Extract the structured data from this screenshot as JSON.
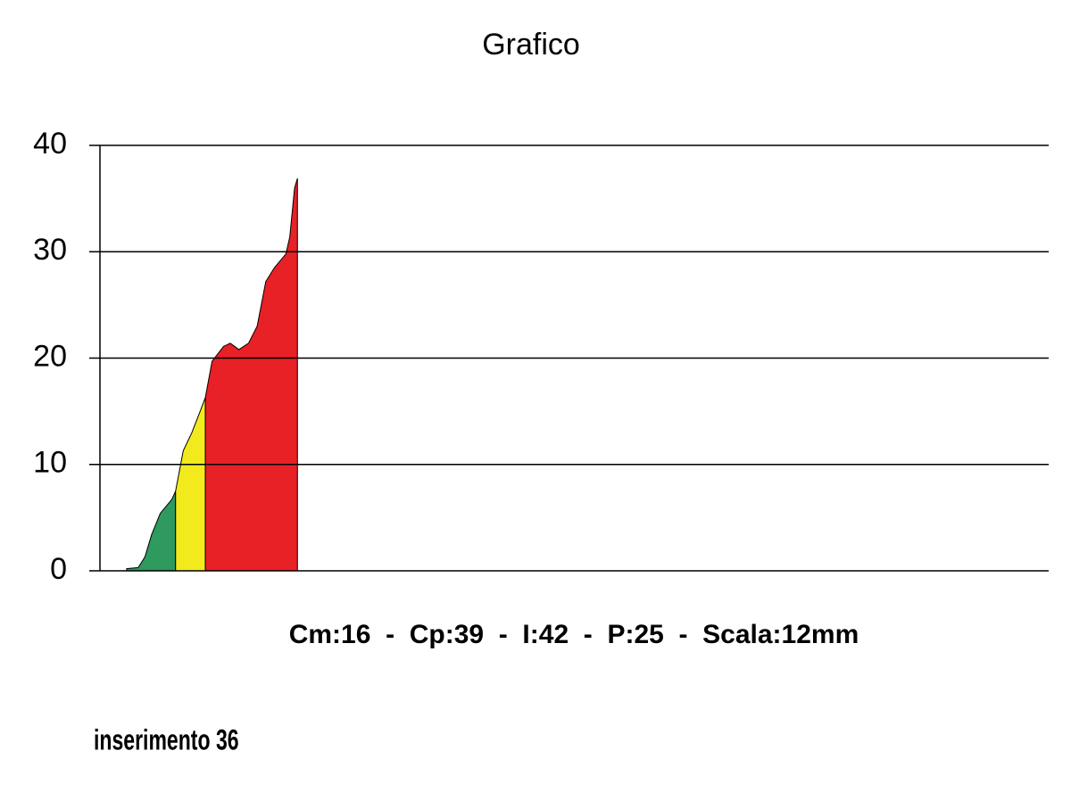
{
  "chart_data": {
    "type": "area",
    "title": "Grafico",
    "xlabel": "Cm:16  -  Cp:39  -  I:42  -  P:25  -  Scala:12mm",
    "note": "inserimento 36",
    "xlim": [
      0,
      100
    ],
    "ylim": [
      0,
      40
    ],
    "yticks": [
      0,
      10,
      20,
      30,
      40
    ],
    "grid": true,
    "series": [
      {
        "color": "#2e9a5e",
        "x": [
          3.9,
          5.1,
          5.8,
          6.5,
          7.4,
          8.6,
          9.0
        ],
        "values": [
          0.2,
          0.3,
          1.3,
          3.4,
          5.4,
          6.7,
          7.5
        ]
      },
      {
        "color": "#f2ea1c",
        "x": [
          9.0,
          9.8,
          10.7,
          11.6,
          12.1
        ],
        "values": [
          7.5,
          11.3,
          13,
          15.1,
          16.3
        ]
      },
      {
        "color": "#e82126",
        "x": [
          12.1,
          12.8,
          14.0,
          14.7,
          15.6,
          16.6,
          17.5,
          18.4,
          19.3,
          20.5,
          20.9,
          21.4,
          21.7
        ],
        "values": [
          16.3,
          19.7,
          21.1,
          21.4,
          20.8,
          21.4,
          23,
          27.2,
          28.5,
          29.8,
          31.4,
          36,
          36.9
        ]
      }
    ]
  }
}
